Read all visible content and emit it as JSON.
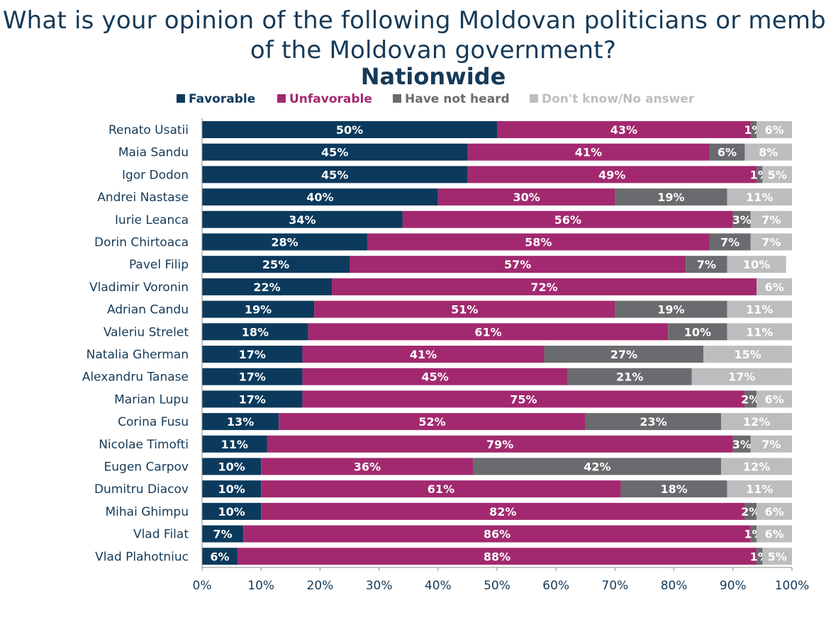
{
  "title": "What is your opinion of the following Moldovan politicians or members of the Moldovan government?",
  "subtitle": "Nationwide",
  "colors": {
    "Favorable": "#0b3a5d",
    "Unfavorable": "#a2296f",
    "Have not heard": "#6a6b6e",
    "Don't know/No answer": "#bdbdc0"
  },
  "legend": [
    "Favorable",
    "Unfavorable",
    "Have not heard",
    "Don't know/No answer"
  ],
  "chart_data": {
    "type": "bar",
    "orientation": "horizontal",
    "stacked": true,
    "categories": [
      "Renato Usatii",
      "Maia Sandu",
      "Igor Dodon",
      "Andrei Nastase",
      "Iurie Leanca",
      "Dorin Chirtoaca",
      "Pavel Filip",
      "Vladimir Voronin",
      "Adrian Candu",
      "Valeriu Strelet",
      "Natalia Gherman",
      "Alexandru Tanase",
      "Marian Lupu",
      "Corina Fusu",
      "Nicolae Timofti",
      "Eugen Carpov",
      "Dumitru Diacov",
      "Mihai Ghimpu",
      "Vlad Filat",
      "Vlad Plahotniuc"
    ],
    "series": [
      {
        "name": "Favorable",
        "values": [
          50,
          45,
          45,
          40,
          34,
          28,
          25,
          22,
          19,
          18,
          17,
          17,
          17,
          13,
          11,
          10,
          10,
          10,
          7,
          6
        ]
      },
      {
        "name": "Unfavorable",
        "values": [
          43,
          41,
          49,
          30,
          56,
          58,
          57,
          72,
          51,
          61,
          41,
          45,
          75,
          52,
          79,
          36,
          61,
          82,
          86,
          88
        ]
      },
      {
        "name": "Have not heard",
        "values": [
          1,
          6,
          1,
          19,
          3,
          7,
          7,
          0,
          19,
          10,
          27,
          21,
          2,
          23,
          3,
          42,
          18,
          2,
          1,
          1
        ]
      },
      {
        "name": "Don't know/No answer",
        "values": [
          6,
          8,
          5,
          11,
          7,
          7,
          10,
          6,
          11,
          11,
          15,
          17,
          6,
          12,
          7,
          12,
          11,
          6,
          6,
          5
        ]
      }
    ],
    "xlim": [
      0,
      100
    ],
    "xticks": [
      "0%",
      "10%",
      "20%",
      "30%",
      "40%",
      "50%",
      "60%",
      "70%",
      "80%",
      "90%",
      "100%"
    ],
    "grid": false,
    "legend_position": "top"
  }
}
